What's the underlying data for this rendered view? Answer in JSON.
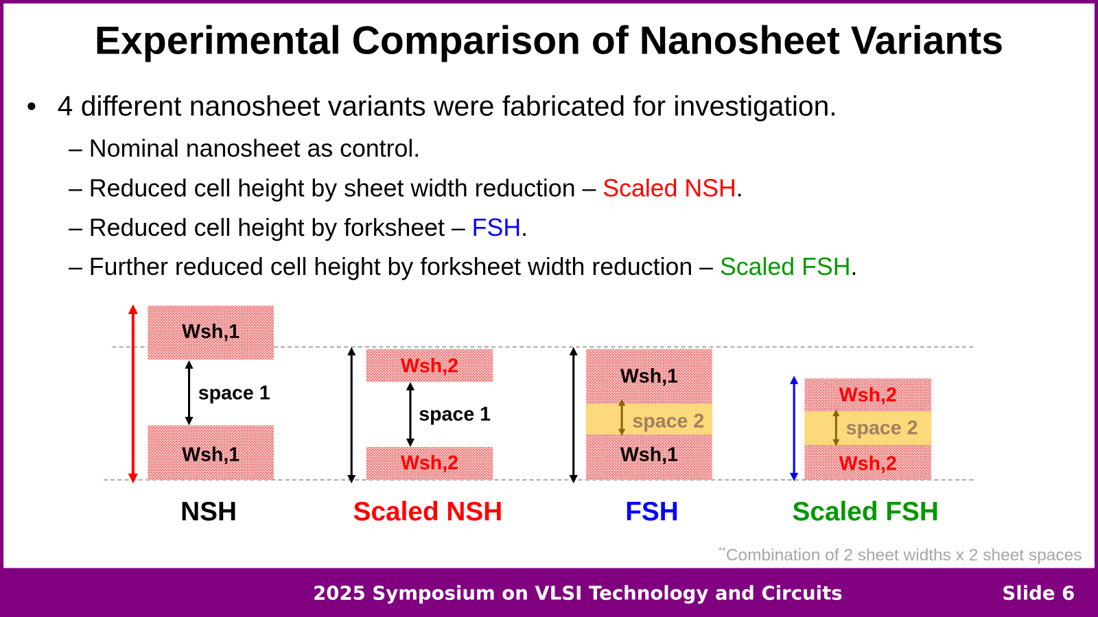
{
  "title": "Experimental Comparison of Nanosheet Variants",
  "bullet": "4 different nanosheet variants were fabricated for investigation.",
  "sub_items": [
    {
      "text": "Nominal nanosheet as control.",
      "highlight": "",
      "color": ""
    },
    {
      "text": "Reduced cell height by sheet width reduction – ",
      "highlight": "Scaled NSH",
      "color": "#ff0000"
    },
    {
      "text": "Reduced cell height by forksheet – ",
      "highlight": "FSH",
      "color": "#0000ff"
    },
    {
      "text": "Further reduced cell height by forksheet width reduction – ",
      "highlight": "Scaled FSH",
      "color": "#009900"
    }
  ],
  "diagram": {
    "nsh": {
      "top": "Wsh,1",
      "bottom": "Wsh,1",
      "space": "space 1",
      "caption": "NSH"
    },
    "scaled_nsh": {
      "top": "Wsh,2",
      "bottom": "Wsh,2",
      "space": "space 1",
      "caption": "Scaled NSH"
    },
    "fsh": {
      "top": "Wsh,1",
      "bottom": "Wsh,1",
      "space": "space 2",
      "caption": "FSH"
    },
    "scaled_fsh": {
      "top": "Wsh,2",
      "bottom": "Wsh,2",
      "space": "space 2",
      "caption": "Scaled FSH"
    }
  },
  "footnote_mark": "**",
  "footnote": "Combination of 2 sheet widths x 2 sheet spaces",
  "footer": {
    "conference": "2025 Symposium on VLSI Technology and Circuits",
    "slide": "Slide 6"
  },
  "colors": {
    "brand": "#800080",
    "red": "#ff0000",
    "blue": "#0000ff",
    "green": "#009900",
    "space2_text": "#a08060"
  }
}
